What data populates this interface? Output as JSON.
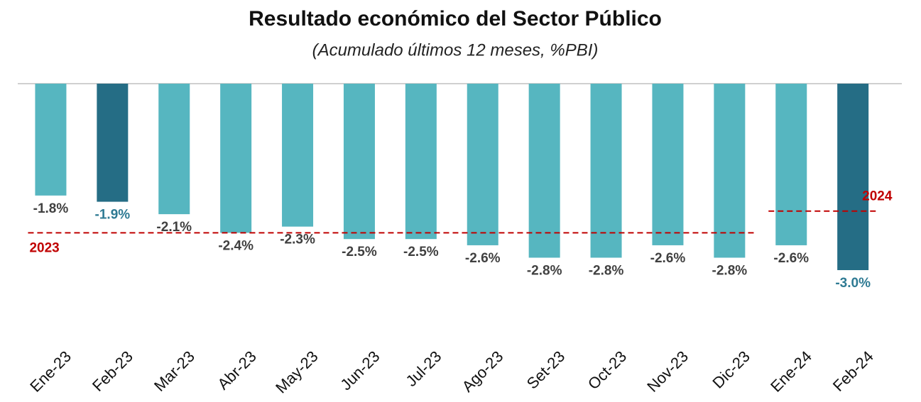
{
  "chart_data": {
    "type": "bar",
    "title": "Resultado económico del Sector Público",
    "subtitle": "(Acumulado últimos 12 meses, %PBI)",
    "categories": [
      "Ene-23",
      "Feb-23",
      "Mar-23",
      "Abr-23",
      "May-23",
      "Jun-23",
      "Jul-23",
      "Ago-23",
      "Set-23",
      "Oct-23",
      "Nov-23",
      "Dic-23",
      "Ene-24",
      "Feb-24"
    ],
    "values": [
      -1.8,
      -1.9,
      -2.1,
      -2.4,
      -2.3,
      -2.5,
      -2.5,
      -2.6,
      -2.8,
      -2.8,
      -2.6,
      -2.8,
      -2.6,
      -3.0
    ],
    "value_labels": [
      "-1.8%",
      "-1.9%",
      "-2.1%",
      "-2.4%",
      "-2.3%",
      "-2.5%",
      "-2.5%",
      "-2.6%",
      "-2.8%",
      "-2.8%",
      "-2.6%",
      "-2.8%",
      "-2.6%",
      "-3.0%"
    ],
    "colors": [
      "#56b6c0",
      "#256d85",
      "#56b6c0",
      "#56b6c0",
      "#56b6c0",
      "#56b6c0",
      "#56b6c0",
      "#56b6c0",
      "#56b6c0",
      "#56b6c0",
      "#56b6c0",
      "#56b6c0",
      "#56b6c0",
      "#256d85"
    ],
    "label_colors": [
      "#404040",
      "#2e7a93",
      "#404040",
      "#404040",
      "#404040",
      "#404040",
      "#404040",
      "#404040",
      "#404040",
      "#404040",
      "#404040",
      "#404040",
      "#404040",
      "#2e7a93"
    ],
    "reference_lines": [
      {
        "label": "2023",
        "value": -2.4,
        "color": "#c00000"
      },
      {
        "label": "2024",
        "value": -2.05,
        "color": "#c00000"
      }
    ]
  }
}
